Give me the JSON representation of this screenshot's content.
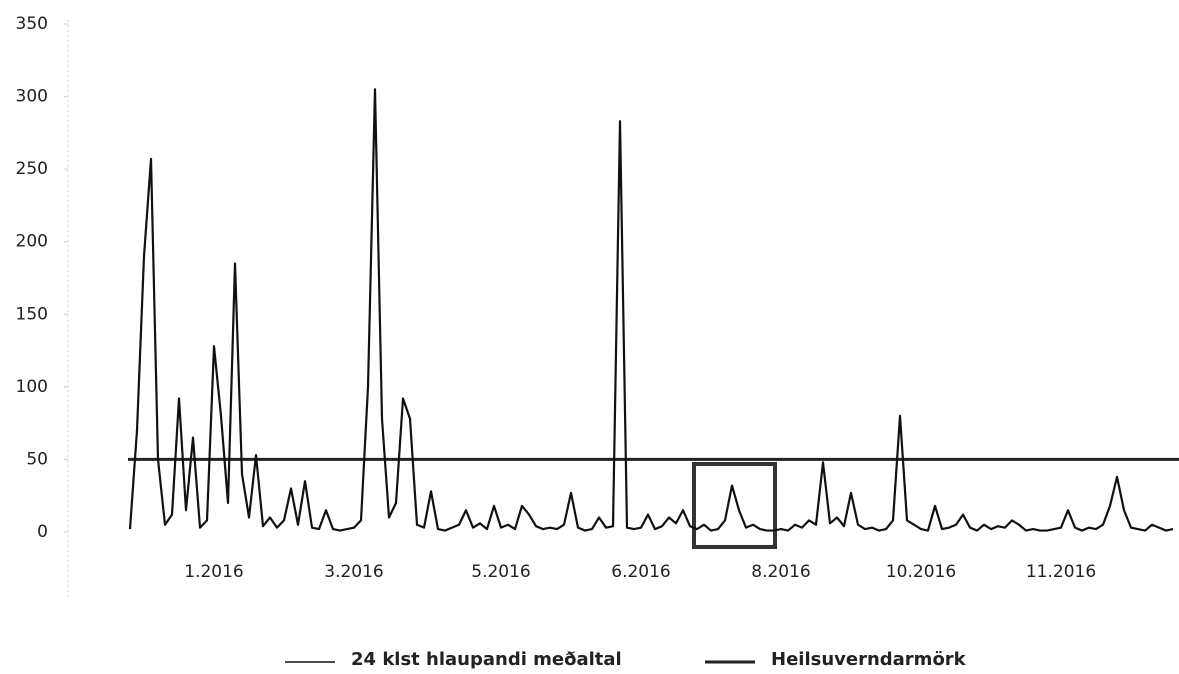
{
  "chart_data": {
    "type": "line",
    "categories": [
      null,
      null,
      null,
      null,
      null,
      null,
      null,
      null,
      null,
      null,
      null,
      null,
      "1.2016",
      null,
      null,
      null,
      null,
      null,
      null,
      null,
      null,
      null,
      null,
      null,
      null,
      null,
      null,
      null,
      null,
      null,
      null,
      null,
      "3.2016",
      null,
      null,
      null,
      null,
      null,
      null,
      null,
      null,
      null,
      null,
      null,
      null,
      null,
      null,
      null,
      null,
      null,
      null,
      null,
      null,
      "5.2016",
      null,
      null,
      null,
      null,
      null,
      null,
      null,
      null,
      null,
      null,
      null,
      null,
      null,
      null,
      null,
      null,
      null,
      null,
      null,
      "6.2016",
      null,
      null,
      null,
      null,
      null,
      null,
      null,
      null,
      null,
      null,
      null,
      null,
      null,
      null,
      null,
      null,
      null,
      null,
      null,
      "8.2016",
      null,
      null,
      null,
      null,
      null,
      null,
      null,
      null,
      null,
      null,
      null,
      null,
      null,
      null,
      null,
      null,
      null,
      null,
      null,
      "10.2016",
      null,
      null,
      null,
      null,
      null,
      null,
      null,
      null,
      null,
      null,
      null,
      null,
      null,
      null,
      null,
      null,
      null,
      null,
      null,
      "11.2016",
      null,
      null,
      null,
      null,
      null,
      null,
      null,
      null,
      null,
      null,
      null,
      null,
      null,
      null,
      null,
      null
    ],
    "series": [
      {
        "name": "24 klst hlaupandi meðaltal",
        "color": "#111111",
        "values": [
          2,
          70,
          190,
          257,
          50,
          5,
          12,
          92,
          15,
          65,
          3,
          8,
          128,
          80,
          20,
          185,
          40,
          10,
          53,
          4,
          10,
          3,
          8,
          30,
          5,
          35,
          3,
          2,
          15,
          2,
          1,
          2,
          3,
          8,
          100,
          305,
          78,
          10,
          20,
          92,
          78,
          5,
          3,
          28,
          2,
          1,
          3,
          5,
          15,
          3,
          6,
          2,
          18,
          3,
          5,
          2,
          18,
          12,
          4,
          2,
          3,
          2,
          5,
          27,
          3,
          1,
          2,
          10,
          3,
          4,
          283,
          3,
          2,
          3,
          12,
          2,
          4,
          10,
          6,
          15,
          4,
          2,
          5,
          1,
          2,
          8,
          32,
          15,
          3,
          5,
          2,
          1,
          1,
          2,
          1,
          5,
          3,
          8,
          5,
          48,
          6,
          10,
          4,
          27,
          5,
          2,
          3,
          1,
          2,
          8,
          80,
          8,
          5,
          2,
          1,
          18,
          2,
          3,
          5,
          12,
          3,
          1,
          5,
          2,
          4,
          3,
          8,
          5,
          1,
          2,
          1,
          1,
          2,
          3,
          15,
          3,
          1,
          3,
          2,
          5,
          18,
          38,
          15,
          3,
          2,
          1,
          5,
          3,
          1,
          2
        ]
      }
    ],
    "reference_lines": [
      {
        "name": "Heilsuverndarmörk",
        "value": 50,
        "color": "#222222"
      }
    ],
    "ylim": [
      0,
      350
    ],
    "yticks": [
      0,
      50,
      100,
      150,
      200,
      250,
      300,
      350
    ]
  }
}
